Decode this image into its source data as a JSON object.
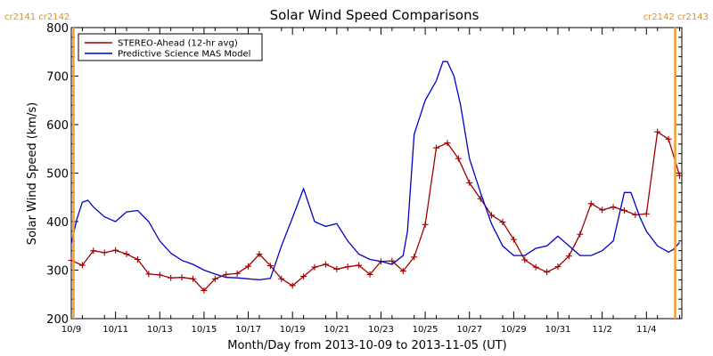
{
  "chart_data": {
    "type": "line",
    "title": "Solar Wind Speed Comparisons",
    "xlabel": "Month/Day from 2013-10-09 to 2013-11-05 (UT)",
    "ylabel": "Solar Wind Speed (km/s)",
    "xlim_days": [
      0,
      27.6
    ],
    "ylim": [
      200,
      800
    ],
    "ytick_values": [
      200,
      300,
      400,
      500,
      600,
      700,
      800
    ],
    "xticks": [
      {
        "label": "10/9",
        "day": 0
      },
      {
        "label": "10/11",
        "day": 2
      },
      {
        "label": "10/13",
        "day": 4
      },
      {
        "label": "10/15",
        "day": 6
      },
      {
        "label": "10/17",
        "day": 8
      },
      {
        "label": "10/19",
        "day": 10
      },
      {
        "label": "10/21",
        "day": 12
      },
      {
        "label": "10/23",
        "day": 14
      },
      {
        "label": "10/25",
        "day": 16
      },
      {
        "label": "10/27",
        "day": 18
      },
      {
        "label": "10/29",
        "day": 20
      },
      {
        "label": "10/31",
        "day": 22
      },
      {
        "label": "11/2",
        "day": 24
      },
      {
        "label": "11/4",
        "day": 26
      }
    ],
    "carrington_markers": [
      {
        "label_left": "cr2141",
        "label_right": "cr2142",
        "day": 0.1,
        "side": "left"
      },
      {
        "label_left": "cr2142",
        "label_right": "cr2143",
        "day": 27.3,
        "side": "right"
      }
    ],
    "legend": {
      "position": "top-left"
    },
    "series": [
      {
        "name": "STEREO-Ahead (12-hr avg)",
        "color": "#a00000",
        "marker": "plus",
        "x": [
          0,
          0.5,
          1,
          1.5,
          2,
          2.5,
          3,
          3.5,
          4,
          4.5,
          5,
          5.5,
          6,
          6.5,
          7,
          7.5,
          8,
          8.5,
          9,
          9.5,
          10,
          10.5,
          11,
          11.5,
          12,
          12.5,
          13,
          13.5,
          14,
          14.5,
          15,
          15.5,
          16,
          16.5,
          17,
          17.5,
          18,
          18.5,
          19,
          19.5,
          20,
          20.5,
          21,
          21.5,
          22,
          22.5,
          23,
          23.5,
          24,
          24.5,
          25,
          25.5,
          26,
          26.5,
          27,
          27.5
        ],
        "y": [
          320,
          310,
          340,
          336,
          341,
          333,
          322,
          292,
          290,
          284,
          285,
          282,
          258,
          282,
          291,
          293,
          308,
          333,
          309,
          282,
          268,
          287,
          306,
          312,
          302,
          307,
          310,
          291,
          318,
          319,
          298,
          327,
          394,
          552,
          562,
          530,
          480,
          447,
          413,
          399,
          363,
          321,
          306,
          296,
          307,
          329,
          374,
          437,
          424,
          430,
          423,
          414,
          416,
          585,
          570,
          495
        ]
      },
      {
        "name": "Predictive Science MAS Model",
        "color": "#0000c8",
        "marker": "none",
        "x": [
          0,
          0.25,
          0.5,
          0.75,
          1,
          1.5,
          2,
          2.5,
          3,
          3.5,
          4,
          4.5,
          5,
          5.5,
          6,
          6.5,
          7,
          7.5,
          8,
          8.5,
          9,
          9.5,
          10,
          10.5,
          11,
          11.5,
          12,
          12.5,
          13,
          13.5,
          14,
          14.5,
          15,
          15.2,
          15.5,
          16,
          16.5,
          16.8,
          17,
          17.3,
          17.6,
          18,
          18.5,
          19,
          19.5,
          20,
          20.5,
          21,
          21.5,
          22,
          22.5,
          23,
          23.5,
          24,
          24.5,
          25,
          25.3,
          25.7,
          26,
          26.5,
          27,
          27.2,
          27.5
        ],
        "y": [
          355,
          405,
          440,
          444,
          430,
          410,
          400,
          420,
          423,
          400,
          360,
          335,
          320,
          312,
          300,
          292,
          285,
          284,
          282,
          280,
          283,
          350,
          408,
          468,
          400,
          390,
          396,
          360,
          333,
          322,
          318,
          312,
          330,
          380,
          580,
          650,
          690,
          730,
          730,
          700,
          640,
          530,
          460,
          395,
          350,
          330,
          330,
          345,
          350,
          370,
          350,
          330,
          330,
          340,
          360,
          460,
          460,
          410,
          380,
          350,
          337,
          342,
          357
        ]
      }
    ]
  }
}
